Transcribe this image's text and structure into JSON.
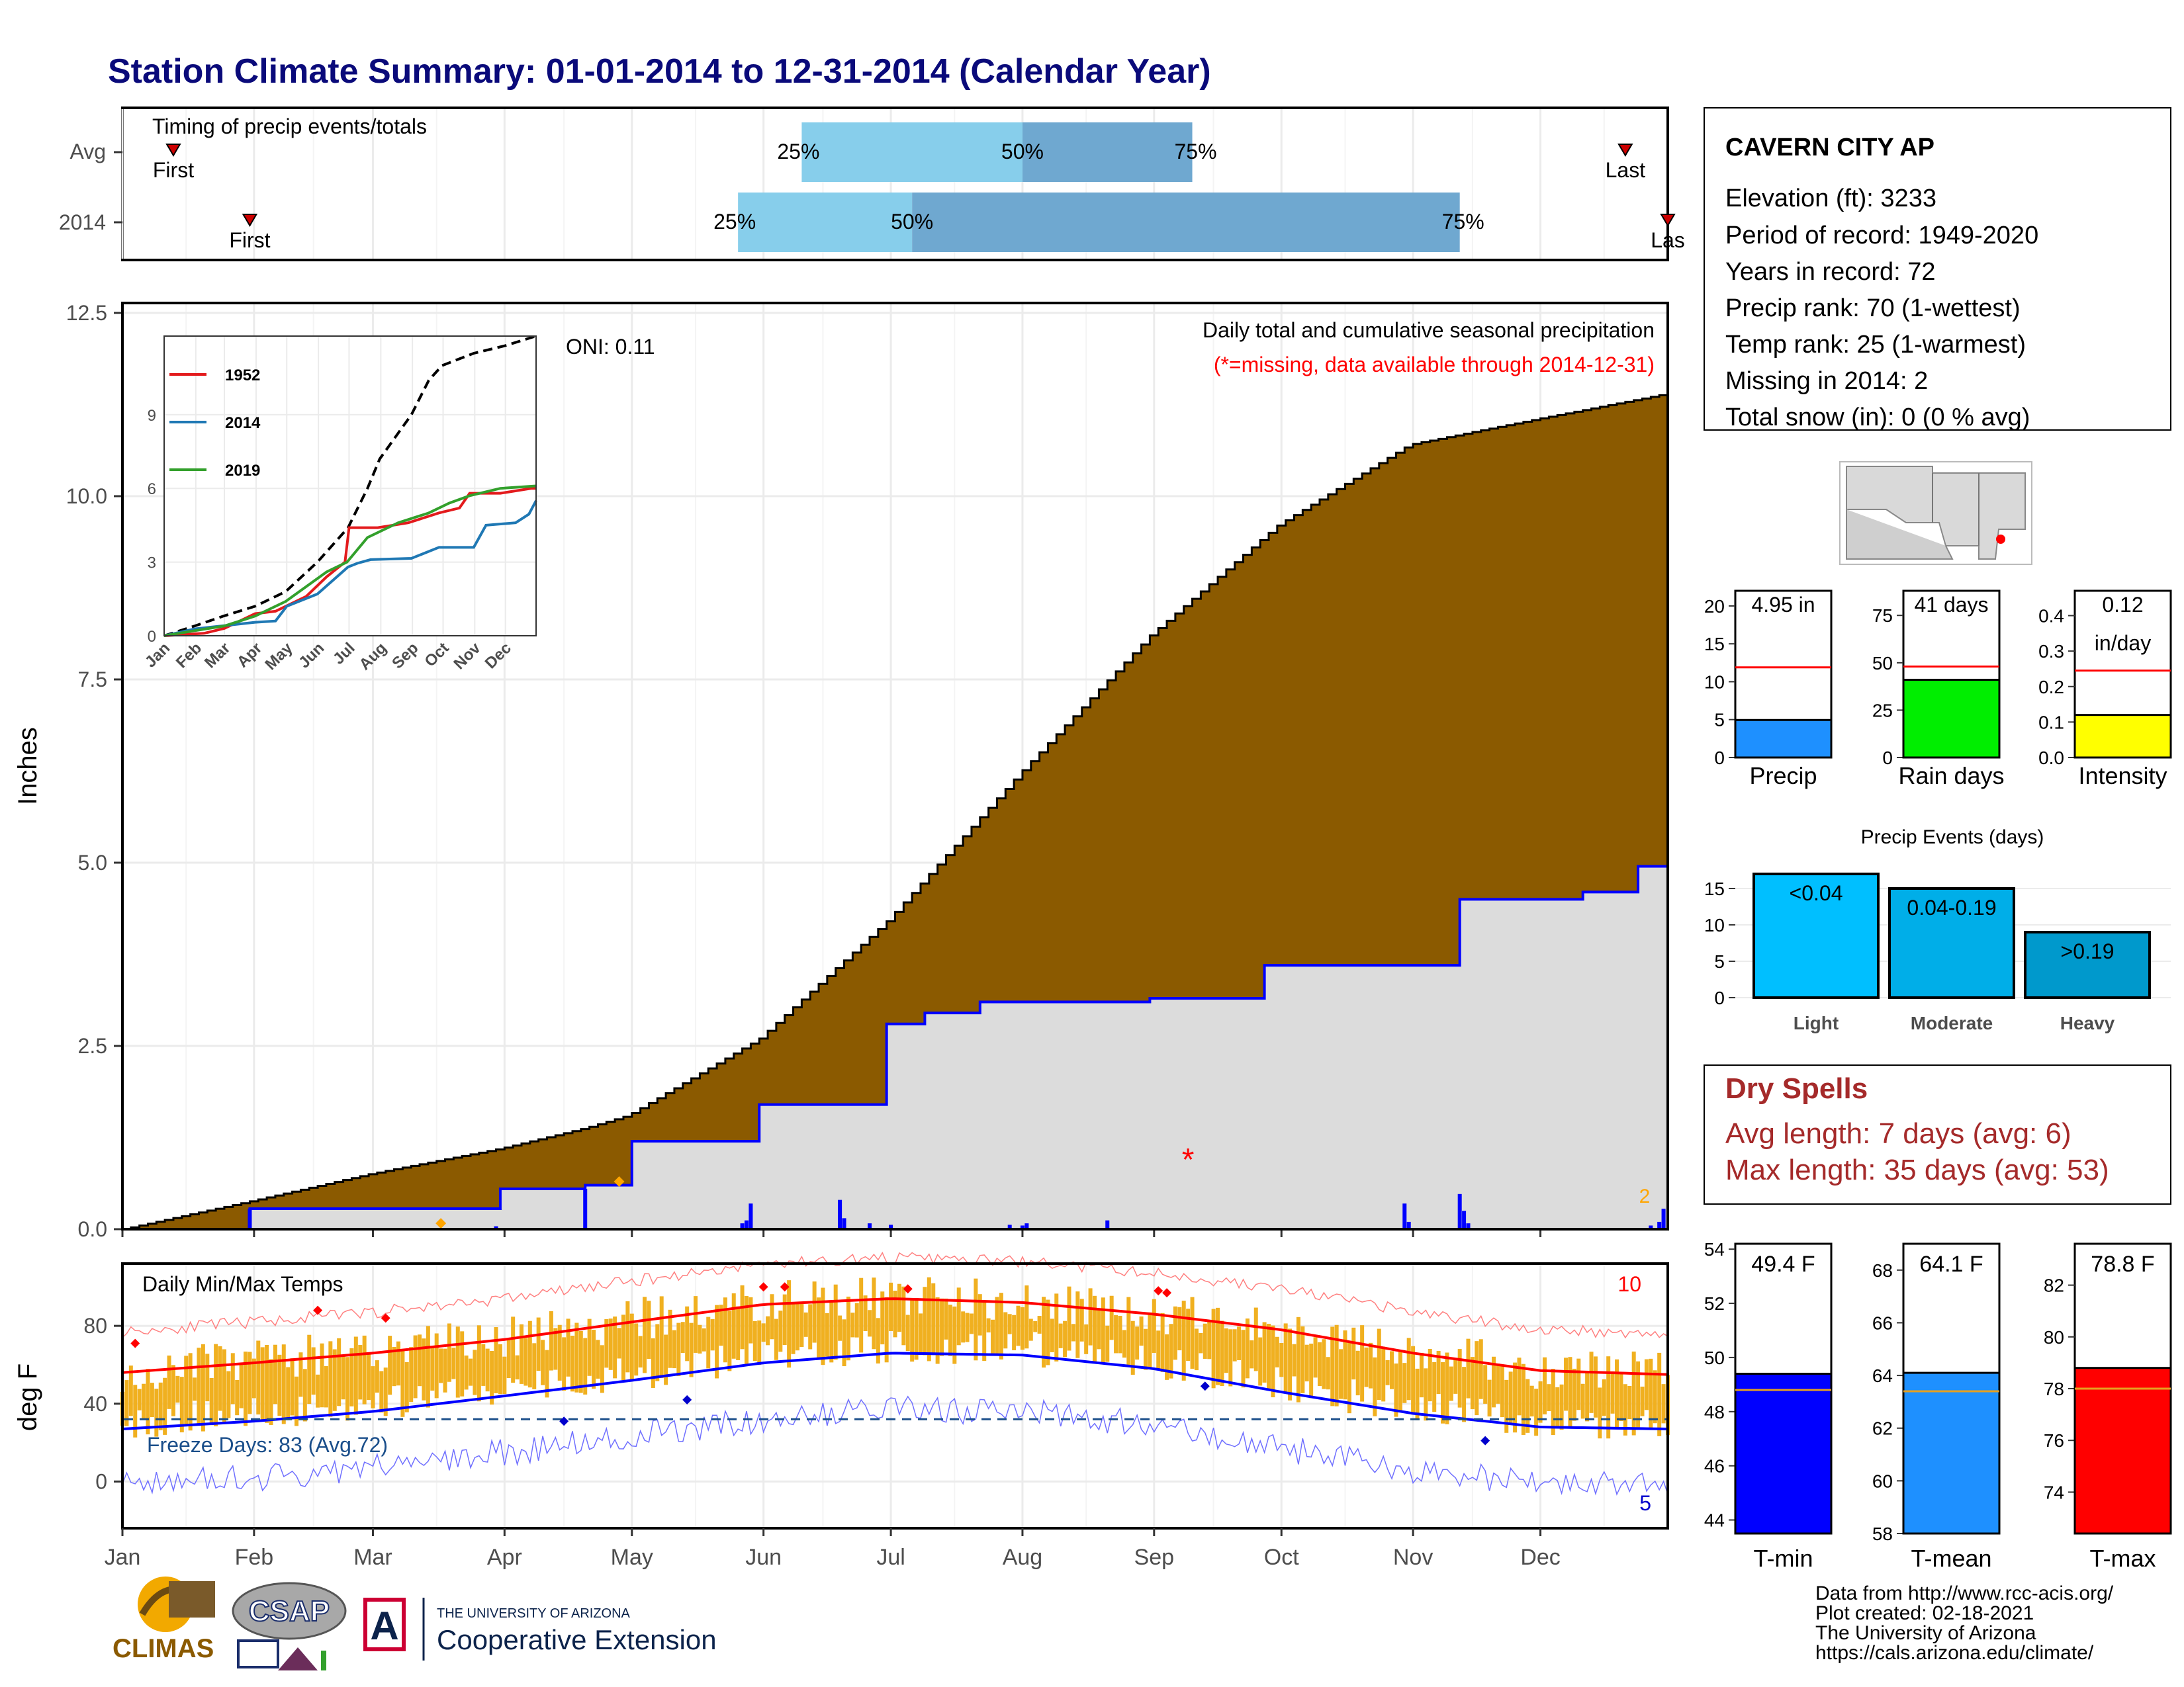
{
  "title": "Station Climate Summary: 01-01-2014 to 12-31-2014 (Calendar Year)",
  "timing": {
    "label": "Timing of precip events/totals",
    "rows": [
      "Avg",
      "2014"
    ],
    "avg": {
      "first_doy": 13,
      "q25_doy": 161,
      "q50_doy": 213,
      "q75_doy": 253,
      "last_doy": 355
    },
    "y2014": {
      "first_doy": 31,
      "q25_doy": 146,
      "q50_doy": 187,
      "q75_doy": 316,
      "last_doy": 365
    },
    "first_label": "First",
    "last_label": "Last",
    "last_label_2014": "Las",
    "q25": "25%",
    "q50": "50%",
    "q75": "75%"
  },
  "months": [
    "Jan",
    "Feb",
    "Mar",
    "Apr",
    "May",
    "Jun",
    "Jul",
    "Aug",
    "Sep",
    "Oct",
    "Nov",
    "Dec"
  ],
  "precip": {
    "ylabel": "Inches",
    "yticks": [
      "0.0",
      "2.5",
      "5.0",
      "7.5",
      "10.0",
      "12.5"
    ],
    "caption": "Daily total and cumulative seasonal precipitation",
    "missing_note": "(*=missing, data available through 2014-12-31)",
    "oni": "ONI: 0.11",
    "missing_count": "2",
    "inset": {
      "yticks": [
        "0",
        "3",
        "6",
        "9"
      ],
      "months": [
        "Jan",
        "Feb",
        "Mar",
        "Apr",
        "May",
        "Jun",
        "Jul",
        "Aug",
        "Sep",
        "Oct",
        "Nov",
        "Dec"
      ],
      "legend": [
        {
          "year": "1952",
          "color": "#e31a1c"
        },
        {
          "year": "2014",
          "color": "#1f78b4"
        },
        {
          "year": "2019",
          "color": "#33a02c"
        }
      ]
    }
  },
  "temps": {
    "ylabel": "deg F",
    "label": "Daily Min/Max Temps",
    "yticks": [
      "0",
      "40",
      "80"
    ],
    "freeze": "Freeze Days: 83 (Avg.72)",
    "hot_count": "10",
    "cold_count": "5"
  },
  "station": {
    "name": "CAVERN CITY AP",
    "lines": [
      "Elevation (ft): 3233",
      "Period of record: 1949-2020",
      "Years in record: 72",
      "Precip rank: 70 (1-wettest)",
      "Temp rank: 25 (1-warmest)",
      "Missing in 2014: 2",
      "Total snow (in): 0 (0 % avg)"
    ]
  },
  "mini_bars": [
    {
      "label": "Precip",
      "value_text": "4.95 in",
      "value": 4.95,
      "avg": 11.9,
      "ymax": 22,
      "ticks": [
        "0",
        "5",
        "10",
        "15",
        "20"
      ],
      "color": "#1e90ff"
    },
    {
      "label": "Rain days",
      "value_text": "41 days",
      "value": 41,
      "avg": 48,
      "ymax": 88,
      "ticks": [
        "0",
        "25",
        "50",
        "75"
      ],
      "color": "#00ee00"
    },
    {
      "label": "Intensity",
      "value_text": "0.12",
      "value_text2": "in/day",
      "value": 0.12,
      "avg": 0.245,
      "ymax": 0.47,
      "ticks": [
        "0.0",
        "0.1",
        "0.2",
        "0.3",
        "0.4"
      ],
      "color": "#ffff00"
    }
  ],
  "events": {
    "title": "Precip Events (days)",
    "ticks": [
      "0",
      "5",
      "10",
      "15"
    ],
    "bars": [
      {
        "name": "Light",
        "label": "<0.04",
        "value": 17,
        "color": "#00bfff"
      },
      {
        "name": "Moderate",
        "label": "0.04-0.19",
        "value": 15,
        "color": "#00aee8"
      },
      {
        "name": "Heavy",
        "label": ">0.19",
        "value": 9,
        "color": "#0099cc"
      }
    ]
  },
  "dry_spells": {
    "title": "Dry Spells",
    "avg": "Avg length: 7 days (avg: 6)",
    "max": "Max length: 35 days (avg: 53)"
  },
  "temp_bars": [
    {
      "label": "T-min",
      "value_text": "49.4 F",
      "value": 49.4,
      "avg": 48.8,
      "ymin": 43.5,
      "ymax": 54.2,
      "ticks": [
        "44",
        "46",
        "48",
        "50",
        "52",
        "54"
      ],
      "color": "#0000ff"
    },
    {
      "label": "T-mean",
      "value_text": "64.1 F",
      "value": 64.1,
      "avg": 63.4,
      "ymin": 58,
      "ymax": 69,
      "ticks": [
        "58",
        "60",
        "62",
        "64",
        "66",
        "68"
      ],
      "color": "#1e90ff"
    },
    {
      "label": "T-max",
      "value_text": "78.8 F",
      "value": 78.8,
      "avg": 78.0,
      "ymin": 72.4,
      "ymax": 83.6,
      "ticks": [
        "74",
        "76",
        "78",
        "80",
        "82"
      ],
      "color": "#ff0000"
    }
  ],
  "credits": [
    "Data from http://www.rcc-acis.org/",
    "Plot created: 02-18-2021",
    "The University of Arizona",
    "https://cals.arizona.edu/climate/"
  ],
  "logos": {
    "climas": "CLIMAS",
    "csap": "CSAP",
    "ua_small": "THE UNIVERSITY OF ARIZONA",
    "ua_big": "Cooperative Extension"
  },
  "chart_data": [
    {
      "type": "area",
      "title": "Daily total and cumulative seasonal precipitation",
      "xlabel": "",
      "ylabel": "Inches",
      "ylim": [
        0,
        12.5
      ],
      "series": [
        {
          "name": "avg_cumulative",
          "x": [
            1,
            31,
            59,
            90,
            110,
            120,
            151,
            181,
            212,
            243,
            273,
            304,
            334,
            365
          ],
          "values": [
            0,
            0.38,
            0.75,
            1.1,
            1.38,
            1.55,
            2.6,
            4.2,
            6.2,
            8.1,
            9.6,
            10.7,
            11.05,
            11.4
          ]
        },
        {
          "name": "2014_cumulative",
          "x": [
            1,
            31,
            90,
            110,
            121,
            150,
            151,
            181,
            190,
            203,
            243,
            270,
            304,
            316,
            345,
            358,
            365
          ],
          "values": [
            0,
            0.28,
            0.55,
            0.6,
            1.2,
            1.2,
            1.7,
            2.8,
            2.95,
            3.1,
            3.15,
            3.6,
            3.6,
            4.5,
            4.6,
            4.95,
            4.95
          ]
        }
      ]
    },
    {
      "type": "line",
      "title": "Daily Min/Max Temps",
      "ylabel": "deg F",
      "ylim": [
        -24,
        112
      ],
      "series": [
        {
          "name": "avg_max",
          "x": [
            1,
            32,
            60,
            91,
            121,
            152,
            182,
            213,
            244,
            274,
            305,
            335,
            365
          ],
          "values": [
            56,
            61,
            66,
            73,
            82,
            91,
            94,
            92,
            86,
            78,
            66,
            57,
            55
          ]
        },
        {
          "name": "avg_min",
          "x": [
            1,
            32,
            60,
            91,
            121,
            152,
            182,
            213,
            244,
            274,
            305,
            335,
            365
          ],
          "values": [
            27,
            31,
            36,
            44,
            52,
            61,
            66,
            65,
            58,
            46,
            35,
            28,
            27
          ]
        }
      ]
    }
  ]
}
